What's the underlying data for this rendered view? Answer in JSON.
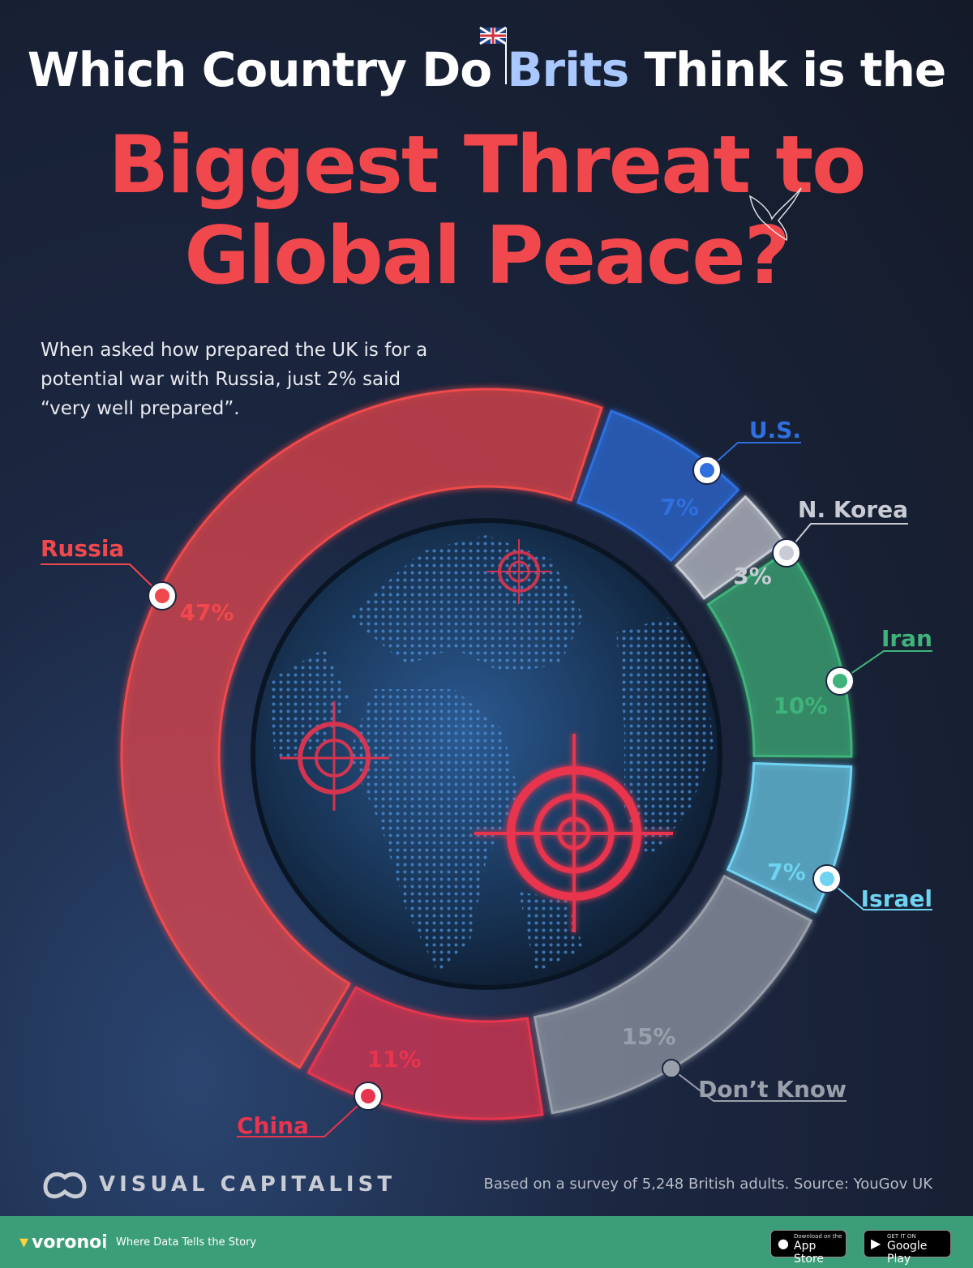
{
  "title": {
    "line1_before": "Which Country Do ",
    "line1_highlight": "Brits",
    "line1_after": " Think is the",
    "line2": "Biggest Threat to",
    "line3": "Global Peace?"
  },
  "intro": "When asked how prepared the UK is for a potential war with Russia, just 2% said “very well prepared”.",
  "chart_data": {
    "type": "pie",
    "donut": true,
    "categories": [
      "Russia",
      "U.S.",
      "N. Korea",
      "Iran",
      "Israel",
      "Don’t Know",
      "China"
    ],
    "values": [
      47,
      7,
      3,
      10,
      7,
      15,
      11
    ],
    "labels": [
      "47%",
      "7%",
      "3%",
      "10%",
      "7%",
      "15%",
      "11%"
    ],
    "colors": [
      "#f0484c",
      "#2f6fe0",
      "#c9ccd4",
      "#3fb37a",
      "#6fd3f2",
      "#9aa0ab",
      "#e8344e"
    ],
    "legend": "labels-around-ring"
  },
  "source": "Based on a survey of 5,248 British adults. Source: YouGov UK",
  "brand": {
    "name": "VISUAL CAPITALIST",
    "app": "voronoi",
    "tagline": "Where Data Tells the Story",
    "appstore_small": "Download on the",
    "appstore_big": "App Store",
    "play_small": "GET IT ON",
    "play_big": "Google Play"
  }
}
